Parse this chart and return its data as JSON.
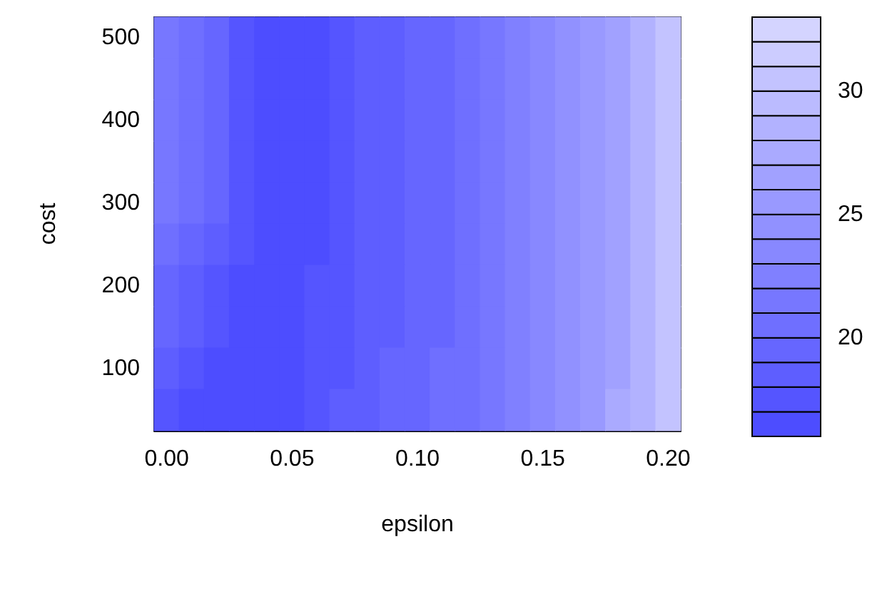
{
  "chart_data": {
    "type": "heatmap",
    "xlabel": "epsilon",
    "ylabel": "cost",
    "categories": [
      "0.00",
      null,
      null,
      null,
      null,
      "0.05",
      null,
      null,
      null,
      null,
      "0.10",
      null,
      null,
      null,
      null,
      "0.15",
      null,
      null,
      null,
      null,
      "0.20"
    ],
    "y_categories": [
      "500",
      null,
      "400",
      null,
      "300",
      null,
      "200",
      null,
      "100",
      null
    ],
    "cells": [
      [
        21,
        20,
        19,
        17,
        16,
        16,
        16,
        17,
        18,
        18,
        19,
        19,
        20,
        21,
        22,
        23,
        24,
        25,
        26,
        28,
        30
      ],
      [
        21,
        20,
        19,
        17,
        16,
        16,
        16,
        17,
        18,
        18,
        19,
        19,
        20,
        21,
        22,
        23,
        24,
        25,
        26,
        28,
        30
      ],
      [
        21,
        20,
        19,
        17,
        16,
        16,
        16,
        17,
        18,
        18,
        19,
        19,
        20,
        21,
        22,
        23,
        24,
        25,
        26,
        28,
        30
      ],
      [
        21,
        20,
        19,
        17,
        16,
        16,
        16,
        17,
        18,
        18,
        19,
        19,
        20,
        21,
        22,
        23,
        24,
        25,
        26,
        28,
        30
      ],
      [
        21,
        20,
        19,
        17,
        16,
        16,
        16,
        17,
        18,
        18,
        19,
        19,
        20,
        21,
        22,
        23,
        24,
        25,
        26,
        28,
        30
      ],
      [
        20,
        19,
        18,
        17,
        16,
        16,
        16,
        17,
        18,
        18,
        19,
        19,
        20,
        21,
        22,
        23,
        24,
        25,
        26,
        28,
        30
      ],
      [
        19,
        18,
        17,
        16,
        16,
        16,
        17,
        17,
        18,
        18,
        19,
        19,
        20,
        21,
        22,
        23,
        24,
        25,
        26,
        28,
        30
      ],
      [
        19,
        18,
        17,
        16,
        16,
        16,
        17,
        17,
        18,
        18,
        19,
        19,
        20,
        21,
        22,
        23,
        24,
        25,
        26,
        28,
        30
      ],
      [
        18,
        17,
        16,
        16,
        16,
        16,
        17,
        17,
        18,
        19,
        19,
        20,
        20,
        21,
        22,
        23,
        24,
        25,
        26,
        28,
        30
      ],
      [
        17,
        16,
        16,
        16,
        16,
        16,
        17,
        18,
        18,
        19,
        19,
        20,
        20,
        21,
        22,
        23,
        24,
        25,
        27,
        28,
        30
      ]
    ],
    "clim": [
      16,
      33
    ],
    "cticks": [
      20,
      25,
      30
    ]
  }
}
